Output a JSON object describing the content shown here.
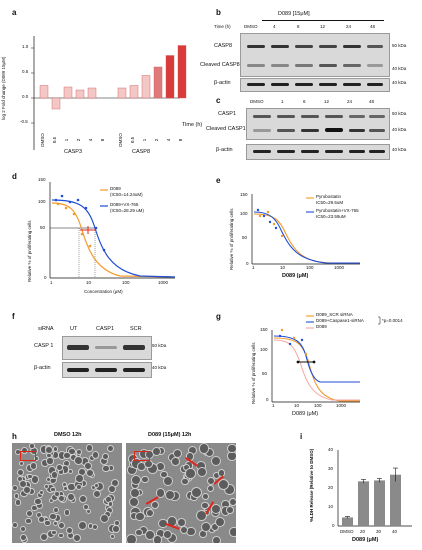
{
  "panels": {
    "a": {
      "label": "a",
      "ylabel": "log 2 Fold change (D089 15μM)",
      "xlabel": "Time (h)",
      "yticks": [
        "1.0",
        "0.5",
        "0.0",
        "-0.5"
      ],
      "group1": "CASP3",
      "group2": "CASP8",
      "times": [
        "DMSO",
        "0.5",
        "1",
        "2",
        "4",
        "8"
      ]
    },
    "b": {
      "label": "b",
      "time_label": "Time (h)",
      "treatment": "D089 [15μM]",
      "lanes": [
        "DMSO",
        "4",
        "8",
        "12",
        "24",
        "48"
      ],
      "rows": [
        "CASP8",
        "Cleaved CASP8",
        "β-actin"
      ],
      "kda": [
        "50 kDa",
        "40 kDa",
        "40 kDa"
      ]
    },
    "c": {
      "label": "c",
      "lanes": [
        "DMSO",
        "1",
        "6",
        "12",
        "24",
        "48"
      ],
      "rows": [
        "CASP1",
        "Cleaved CASP1",
        "β-actin"
      ],
      "kda": [
        "50 kDa",
        "40 kDa",
        "40 kDa"
      ]
    },
    "d": {
      "label": "d",
      "legend1": "D089",
      "legend1b": "(IC50=14.24uM)",
      "legend2": "D089+VX-765",
      "legend2b": "(IC50=28.29 uM)",
      "ylabel": "Relative % of proliferating cells",
      "xlabel": "Concentration (μM)",
      "yticks": [
        "150",
        "100",
        "50",
        "0"
      ],
      "xticks": [
        "1",
        "10",
        "100",
        "1000"
      ]
    },
    "e": {
      "label": "e",
      "legend1": "Pyrobostatin",
      "legend1b": "IC50=29.5uM",
      "legend2": "Pyrobostatin+VX-765",
      "legend2b": "IC50=23.59uM",
      "ylabel": "Relative % of proliferating cells",
      "xlabel": "D089 (μM)",
      "yticks": [
        "150",
        "100",
        "50",
        "0"
      ],
      "xticks": [
        "1",
        "10",
        "100",
        "1000"
      ]
    },
    "f": {
      "label": "f",
      "siRNA": "siRNA",
      "lanes": [
        "UT",
        "CASP1",
        "SCR"
      ],
      "rows": [
        "CASP 1",
        "β-actin"
      ],
      "kda": [
        "50 kDa",
        "40 kDa"
      ]
    },
    "g": {
      "label": "g",
      "legend1": "D089_SCR siRNA",
      "legend2": "D089+Caspase1-siRNA",
      "legend3": "D089",
      "pval": "*p=0.0014",
      "ylabel": "Relative % of proliferating cells",
      "xlabel": "D089 (μM)",
      "yticks": [
        "150",
        "100",
        "50",
        "0"
      ],
      "xticks": [
        "1",
        "10",
        "100",
        "1000"
      ]
    },
    "h": {
      "label": "h",
      "title1": "DMSO 12h",
      "title2": "D089 (15μM) 12h"
    },
    "i": {
      "label": "i",
      "ylabel": "%LDH Release (Relative to DMSO)",
      "xlabel": "D089 (μM)",
      "categories": [
        "DMSO",
        "20",
        "30",
        "40"
      ],
      "yticks": [
        "40",
        "30",
        "20",
        "10",
        "0"
      ]
    }
  },
  "chart_data": [
    {
      "type": "bar",
      "categories": [
        "DMSO",
        "0.5",
        "1",
        "2",
        "4",
        "8",
        "DMSO",
        "0.5",
        "1",
        "2",
        "4",
        "8"
      ],
      "values": [
        0.25,
        -0.22,
        0.22,
        0.16,
        0.2,
        0.0,
        0.2,
        0.25,
        0.45,
        0.62,
        0.85,
        1.05
      ],
      "ylim": [
        -0.5,
        1.2
      ]
    },
    {
      "type": "bar",
      "categories": [
        "DMSO",
        "20",
        "30",
        "40"
      ],
      "values": [
        4.5,
        23.5,
        24,
        27
      ],
      "errors": [
        0.5,
        1,
        1,
        3.5
      ],
      "ylim": [
        0,
        40
      ]
    }
  ],
  "colors": {
    "light_bar": "#f4c7c7",
    "mid_bar": "#e07a7a",
    "dark_bar": "#d93b3b",
    "orange": "#f39a2a",
    "blue": "#1f4fd6",
    "gray_bar": "#8a8a8a"
  }
}
